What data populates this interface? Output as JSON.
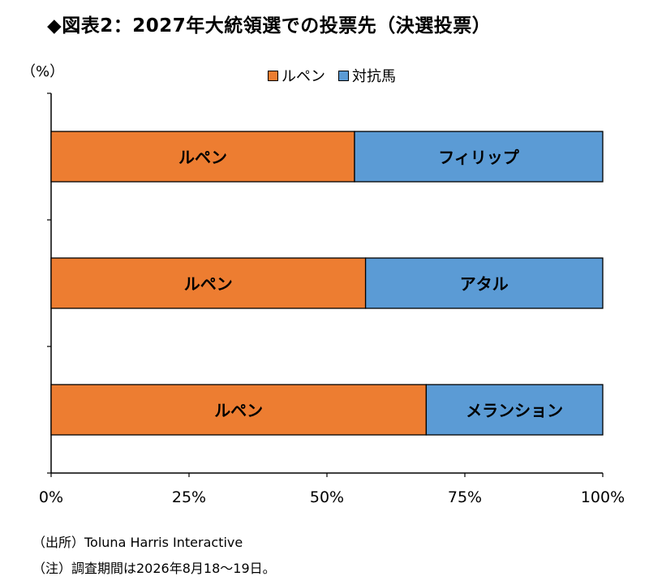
{
  "title": "◆図表2：2027年大統領選での投票先（決選投票）",
  "unit": "（%）",
  "colors": {
    "le_pen": "#ED7D31",
    "opponent": "#5B9BD5"
  },
  "legend": [
    "ルペン",
    "対抗馬"
  ],
  "chart_data": {
    "type": "bar",
    "orientation": "horizontal",
    "stacked": true,
    "title": "2027年大統領選での投票先（決選投票）",
    "ylabel": "（%）",
    "xlim": [
      0,
      100
    ],
    "x_ticks": [
      "0%",
      "25%",
      "50%",
      "75%",
      "100%"
    ],
    "categories": [
      "ルペン 対 フィリップ",
      "ルペン 対 アタル",
      "ルペン 対 メランション"
    ],
    "series": [
      {
        "name": "ルペン",
        "values": [
          55,
          57,
          68
        ],
        "labels": [
          "ルペン",
          "ルペン",
          "ルペン"
        ]
      },
      {
        "name": "対抗馬",
        "values": [
          45,
          43,
          32
        ],
        "labels": [
          "フィリップ",
          "アタル",
          "メランション"
        ]
      }
    ],
    "legend_position": "top"
  },
  "notes": {
    "source": "（出所）Toluna Harris Interactive",
    "notes": "（注）調査期間は2026年8月18〜19日。"
  }
}
